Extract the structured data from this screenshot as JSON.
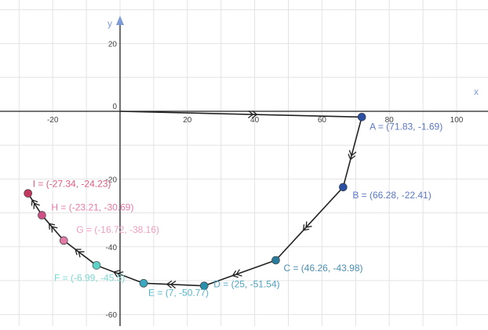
{
  "colors": {
    "point_A": "#2b4fa3",
    "point_B": "#2b4fa3",
    "point_C": "#2a7a9c",
    "point_D": "#2a8ea8",
    "point_E": "#3aa9c0",
    "point_F": "#5fd3c7",
    "point_G": "#e07aa7",
    "point_H": "#cc4f85",
    "point_I": "#c2375d",
    "label_A": "#5b78c4",
    "label_B": "#5b78c4",
    "label_C": "#4a90b2",
    "label_D": "#4fa3c1",
    "label_E": "#58b6cc",
    "label_F": "#7ed9d0",
    "label_G": "#ee9dbf",
    "label_H": "#e77aa6",
    "label_I": "#de5b82"
  },
  "chart_data": {
    "type": "line",
    "xlabel": "x",
    "ylabel": "y",
    "xlim": [
      -35,
      112
    ],
    "ylim": [
      -64,
      32
    ],
    "grid": true,
    "x_ticks": [
      "-20",
      "20",
      "40",
      "60",
      "80",
      "100"
    ],
    "x_tick_values": [
      -20,
      20,
      40,
      60,
      80,
      100
    ],
    "y_ticks": [
      "20",
      "-20",
      "-40",
      "-60"
    ],
    "y_tick_values": [
      20,
      -20,
      -40,
      -60
    ],
    "origin_label": "0",
    "points": [
      {
        "name": "A",
        "x": 71.83,
        "y": -1.69,
        "label": "A = (71.83, -1.69)"
      },
      {
        "name": "B",
        "x": 66.28,
        "y": -22.41,
        "label": "B = (66.28, -22.41)"
      },
      {
        "name": "C",
        "x": 46.26,
        "y": -43.98,
        "label": "C = (46.26, -43.98)"
      },
      {
        "name": "D",
        "x": 25,
        "y": -51.54,
        "label": "D = (25, -51.54)"
      },
      {
        "name": "E",
        "x": 7,
        "y": -50.77,
        "label": "E = (7, -50.77)"
      },
      {
        "name": "F",
        "x": -6.99,
        "y": -45.5,
        "label": "F = (-6.99, -45.5)"
      },
      {
        "name": "G",
        "x": -16.72,
        "y": -38.16,
        "label": "G = (-16.72, -38.16)"
      },
      {
        "name": "H",
        "x": -23.21,
        "y": -30.69,
        "label": "H = (-23.21, -30.69)"
      },
      {
        "name": "I",
        "x": -27.34,
        "y": -24.23,
        "label": "I = (-27.34, -24.23)"
      }
    ],
    "path_start": [
      0,
      0
    ],
    "arrow_direction": "from origin to A, then A through I"
  }
}
